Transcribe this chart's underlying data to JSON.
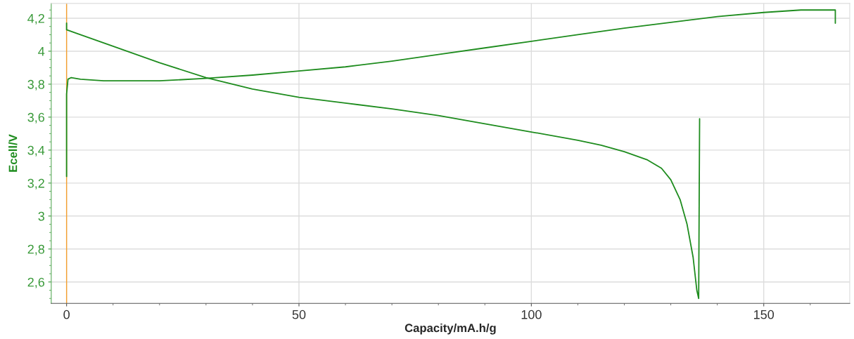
{
  "chart_data": {
    "type": "line",
    "xlabel": "Capacity/mA.h/g",
    "ylabel": "Ecell/V",
    "series": [
      {
        "color": "#1e8c1e",
        "x": [
          0,
          0,
          0.3,
          1,
          3,
          8,
          20,
          30,
          40,
          50,
          60,
          70,
          80,
          90,
          100,
          110,
          120,
          130,
          140,
          150,
          158,
          165.4,
          165.4
        ],
        "values": [
          3.24,
          3.74,
          3.83,
          3.84,
          3.83,
          3.82,
          3.82,
          3.835,
          3.855,
          3.88,
          3.905,
          3.94,
          3.98,
          4.02,
          4.06,
          4.1,
          4.14,
          4.175,
          4.21,
          4.235,
          4.25,
          4.25,
          4.17
        ]
      },
      {
        "color": "#1e8c1e",
        "x": [
          0,
          0,
          2,
          10,
          20,
          30,
          40,
          50,
          60,
          70,
          80,
          90,
          100,
          110,
          115,
          120,
          125,
          128,
          130,
          132,
          133.5,
          134.8,
          135.6,
          136,
          136.2
        ],
        "values": [
          4.17,
          4.13,
          4.11,
          4.03,
          3.93,
          3.84,
          3.77,
          3.72,
          3.685,
          3.65,
          3.61,
          3.56,
          3.51,
          3.46,
          3.43,
          3.39,
          3.34,
          3.29,
          3.22,
          3.1,
          2.95,
          2.75,
          2.55,
          2.5,
          3.59
        ]
      }
    ],
    "xlim": [
      -3.3,
      168.5
    ],
    "ylim": [
      2.47,
      4.29
    ],
    "xticks": [
      0,
      50,
      100,
      150
    ],
    "yticks": [
      {
        "value": 2.6,
        "label": "2,6"
      },
      {
        "value": 2.8,
        "label": "2,8"
      },
      3,
      {
        "value": 3.2,
        "label": "3,2"
      },
      {
        "value": 3.4,
        "label": "3,4"
      },
      {
        "value": 3.6,
        "label": "3,6"
      },
      {
        "value": 3.8,
        "label": "3,8"
      },
      4,
      {
        "value": 4.2,
        "label": "4,2"
      }
    ],
    "ref_lines": [
      {
        "axis": "x",
        "value": 0,
        "color": "#f5a030"
      }
    ],
    "grid": true,
    "marker": "none",
    "line_style": "solid"
  }
}
